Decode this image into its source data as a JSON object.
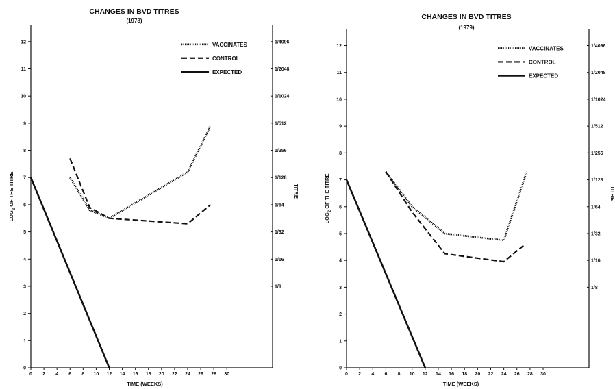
{
  "chart_data": [
    {
      "type": "line",
      "title": "CHANGES IN BVD TITRES",
      "subtitle": "(1978)",
      "xlabel": "TIME (WEEKS)",
      "ylabel": "LOG2 OF THE TITRE",
      "ylabel_base": "LOG",
      "ylabel_sub": "2",
      "ylabel_rest": " OF THE TITRE",
      "y2label": "TITRE",
      "xlim": [
        0,
        37
      ],
      "ylim": [
        0,
        12.6
      ],
      "x_ticks": [
        "0",
        "2",
        "4",
        "6",
        "8",
        "10",
        "12",
        "14",
        "16",
        "18",
        "20",
        "22",
        "24",
        "26",
        "28",
        "30"
      ],
      "y_ticks": [
        "0",
        "1",
        "2",
        "3",
        "4",
        "5",
        "6",
        "7",
        "8",
        "9",
        "10",
        "11",
        "12"
      ],
      "y2_ticks": [
        {
          "value": 3,
          "label": "1/8"
        },
        {
          "value": 4,
          "label": "1/16"
        },
        {
          "value": 5,
          "label": "1/32"
        },
        {
          "value": 6,
          "label": "1/64"
        },
        {
          "value": 7,
          "label": "1/128"
        },
        {
          "value": 8,
          "label": "1/256"
        },
        {
          "value": 9,
          "label": "1/512"
        },
        {
          "value": 10,
          "label": "1/1024"
        },
        {
          "value": 11,
          "label": "1/2048"
        },
        {
          "value": 12,
          "label": "1/4096"
        }
      ],
      "grid": false,
      "legend_position": "top-right",
      "series": [
        {
          "name": "VACCINATES",
          "style": "dotted",
          "x": [
            6,
            9,
            12,
            24,
            27.5
          ],
          "y": [
            7.0,
            5.8,
            5.5,
            7.2,
            8.9
          ]
        },
        {
          "name": "CONTROL",
          "style": "dashed",
          "x": [
            6,
            9,
            12,
            24,
            27.5
          ],
          "y": [
            7.7,
            5.9,
            5.5,
            5.3,
            6.0
          ]
        },
        {
          "name": "EXPECTED",
          "style": "solid",
          "x": [
            0,
            12
          ],
          "y": [
            7,
            0
          ]
        }
      ]
    },
    {
      "type": "line",
      "title": "CHANGES IN BVD TITRES",
      "subtitle": "(1979)",
      "xlabel": "TIME (WEEKS)",
      "ylabel": "LOG2 OF THE TITRE",
      "ylabel_base": "LOG",
      "ylabel_sub": "2",
      "ylabel_rest": " OF THE TITRE",
      "y2label": "TITRE",
      "xlim": [
        0,
        37
      ],
      "ylim": [
        0,
        12.6
      ],
      "x_ticks": [
        "0",
        "2",
        "4",
        "6",
        "8",
        "10",
        "12",
        "14",
        "16",
        "18",
        "20",
        "22",
        "24",
        "26",
        "28",
        "30"
      ],
      "y_ticks": [
        "0",
        "1",
        "2",
        "3",
        "4",
        "5",
        "6",
        "7",
        "8",
        "9",
        "10",
        "11",
        "12"
      ],
      "y2_ticks": [
        {
          "value": 3,
          "label": "1/8"
        },
        {
          "value": 4,
          "label": "1/16"
        },
        {
          "value": 5,
          "label": "1/32"
        },
        {
          "value": 6,
          "label": "1/64"
        },
        {
          "value": 7,
          "label": "1/128"
        },
        {
          "value": 8,
          "label": "1/256"
        },
        {
          "value": 9,
          "label": "1/512"
        },
        {
          "value": 10,
          "label": "1/1024"
        },
        {
          "value": 11,
          "label": "1/2048"
        },
        {
          "value": 12,
          "label": "1/4096"
        }
      ],
      "grid": false,
      "legend_position": "top-right",
      "series": [
        {
          "name": "VACCINATES",
          "style": "dotted",
          "x": [
            6,
            10,
            15,
            24,
            27.5
          ],
          "y": [
            7.3,
            6.0,
            5.0,
            4.75,
            7.3
          ]
        },
        {
          "name": "CONTROL",
          "style": "dashed",
          "x": [
            6,
            10,
            15,
            24,
            27
          ],
          "y": [
            7.3,
            5.8,
            4.25,
            3.95,
            4.55
          ]
        },
        {
          "name": "EXPECTED",
          "style": "solid",
          "x": [
            0,
            12
          ],
          "y": [
            7,
            0
          ]
        }
      ]
    }
  ]
}
